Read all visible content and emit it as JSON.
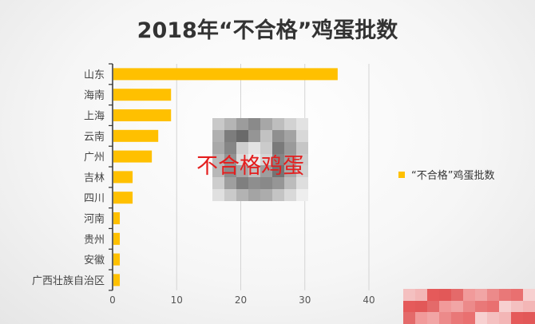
{
  "chart_data": {
    "type": "bar",
    "orientation": "horizontal",
    "title": "2018年“不合格”鸡蛋批数",
    "categories": [
      "山东",
      "海南",
      "上海",
      "云南",
      "广州",
      "吉林",
      "四川",
      "河南",
      "贵州",
      "安徽",
      "广西壮族自治区"
    ],
    "series": [
      {
        "name": "“不合格”鸡蛋批数",
        "values": [
          35,
          9,
          9,
          7,
          6,
          3,
          3,
          1,
          1,
          1,
          1
        ],
        "color": "#ffc000"
      }
    ],
    "xlim": [
      0,
      40
    ],
    "xticks": [
      "0",
      "10",
      "20",
      "30",
      "40"
    ],
    "grid": "vertical",
    "legend": "right"
  },
  "overlay": {
    "caption": "不合格鸡蛋"
  }
}
